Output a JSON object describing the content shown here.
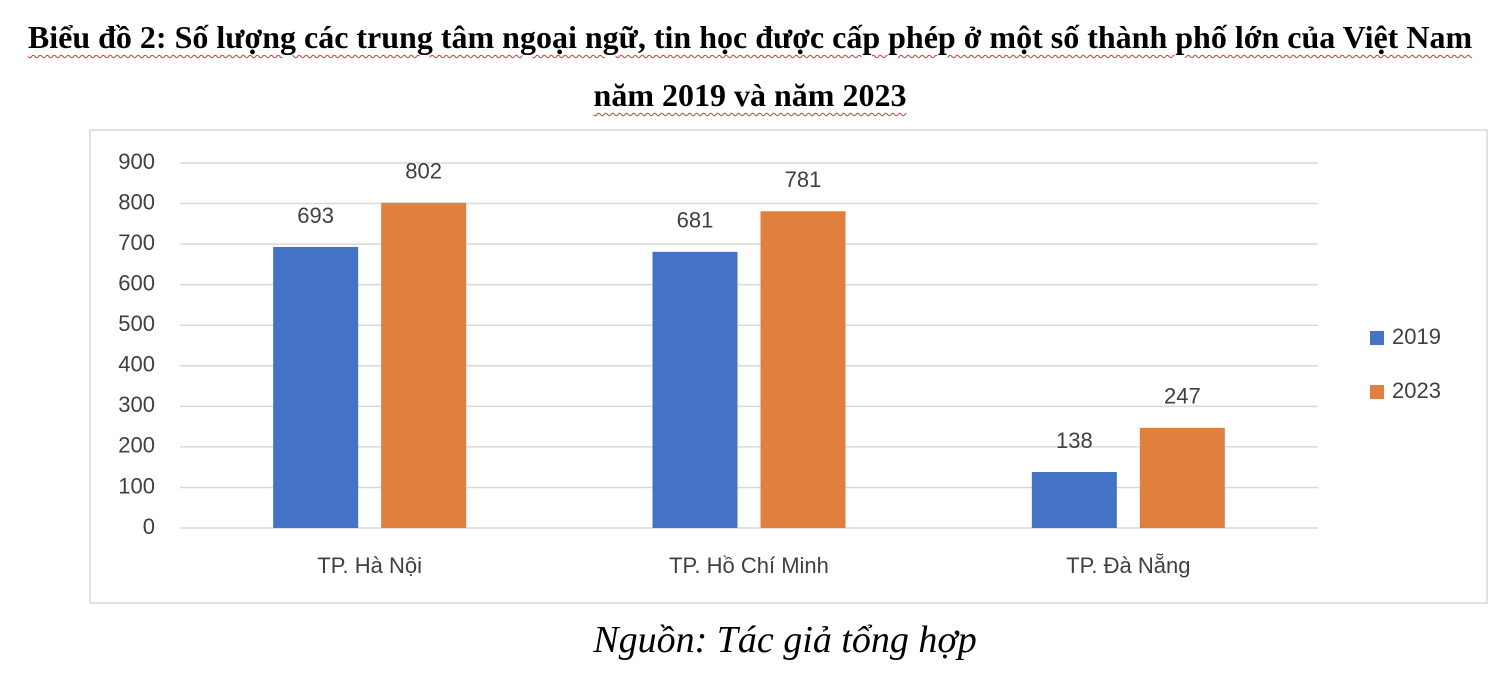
{
  "chart_data": {
    "type": "bar",
    "title": "Biểu đồ 2: Số lượng các trung tâm ngoại ngữ, tin học được cấp phép ở một số thành phố lớn của Việt Nam năm 2019 và năm 2023",
    "categories": [
      "TP. Hà Nội",
      "TP. Hồ Chí Minh",
      "TP. Đà Nẵng"
    ],
    "series": [
      {
        "name": "2019",
        "color": "#4472c4",
        "values": [
          693,
          681,
          138
        ]
      },
      {
        "name": "2023",
        "color": "#e07f3e",
        "values": [
          802,
          781,
          247
        ]
      }
    ],
    "ylim": [
      0,
      900
    ],
    "yticks": [
      0,
      100,
      200,
      300,
      400,
      500,
      600,
      700,
      800,
      900
    ],
    "grid": true,
    "legend": "right",
    "source": "Nguồn: Tác giả tổng hợp"
  }
}
